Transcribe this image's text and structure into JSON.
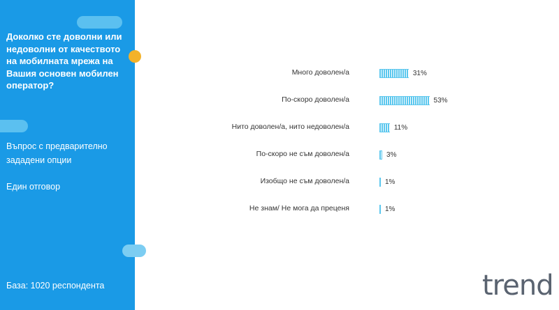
{
  "sidebar": {
    "question": "Доколко сте доволни или недоволни от качеството на мобилната мрежа на Вашия основен мобилен оператор?",
    "note_options": "Въпрос с предварително зададени опции",
    "note_answer": "Един отговор",
    "base": "База:  1020 респондента"
  },
  "logo": {
    "text": "trend"
  },
  "colors": {
    "sidebar": "#1a9ae6",
    "bar": "#5bc7ee",
    "accent": "#f3b22a"
  },
  "chart_data": {
    "type": "bar",
    "orientation": "horizontal",
    "categories": [
      "Много доволен/а",
      "По-скоро доволен/а",
      "Нито доволен/а, нито недоволен/а",
      "По-скоро не съм доволен/а",
      "Изобщо не съм доволен/а",
      "Не знам/ Не мога да преценя"
    ],
    "values": [
      31,
      53,
      11,
      3,
      1,
      1
    ],
    "value_labels": [
      "31%",
      "53%",
      "11%",
      "3%",
      "1%",
      "1%"
    ],
    "unit": "%",
    "grid": false,
    "legend": "none"
  }
}
